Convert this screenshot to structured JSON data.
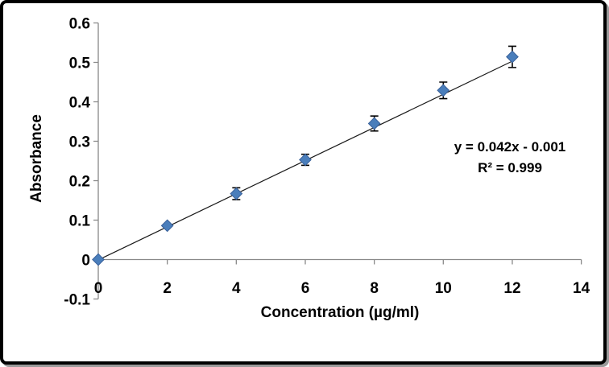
{
  "figure": {
    "background_color": "#ffffff",
    "frame_color": "#000000",
    "shadow_color": "#9a9a9a"
  },
  "chart_data": {
    "type": "scatter",
    "title": "",
    "xlabel": "Concentration (µg/ml)",
    "ylabel": "Absorbance",
    "x": [
      0,
      2,
      4,
      6,
      8,
      10,
      12
    ],
    "y": [
      0.0,
      0.086,
      0.167,
      0.253,
      0.345,
      0.429,
      0.514
    ],
    "y_errors": [
      0,
      0,
      0.015,
      0.014,
      0.019,
      0.021,
      0.027
    ],
    "xlim": [
      0,
      14
    ],
    "ylim": [
      -0.1,
      0.6
    ],
    "x_ticks": [
      0,
      2,
      4,
      6,
      8,
      10,
      12,
      14
    ],
    "x_tick_labels": [
      "0",
      "2",
      "4",
      "6",
      "8",
      "10",
      "12",
      "14"
    ],
    "y_ticks": [
      -0.1,
      0,
      0.1,
      0.2,
      0.3,
      0.4,
      0.5,
      0.6
    ],
    "y_tick_labels": [
      "-0.1",
      "0",
      "0.1",
      "0.2",
      "0.3",
      "0.4",
      "0.5",
      "0.6"
    ],
    "grid": false,
    "legend": false,
    "trendline": {
      "slope": 0.042,
      "intercept": -0.001,
      "x_start": 0,
      "x_end": 12.08,
      "color": "#1a1a1a"
    },
    "annotation": {
      "line1": "y = 0.042x - 0.001",
      "line2": "R² = 0.999"
    },
    "marker": {
      "shape": "diamond",
      "fill": "#4A7EBB",
      "stroke": "#38609A"
    },
    "axis_color": "#898989",
    "error_bar_color": "#000000"
  }
}
